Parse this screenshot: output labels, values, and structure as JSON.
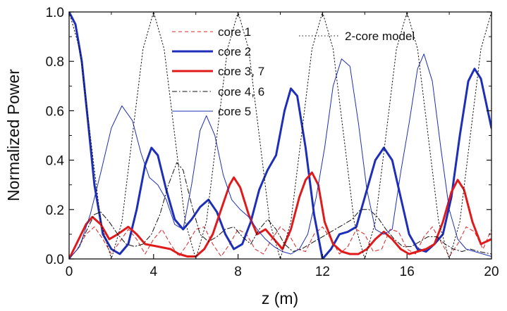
{
  "chart_data": {
    "type": "line",
    "title": "",
    "xlabel": "z (m)",
    "ylabel": "Normalized Power",
    "xlim": [
      0,
      20
    ],
    "ylim": [
      0,
      1.0
    ],
    "xticks": [
      0,
      4,
      8,
      12,
      16,
      20
    ],
    "xtick_labels": [
      "0",
      "4",
      "8",
      "12",
      "16",
      "20"
    ],
    "yticks": [
      0,
      0.2,
      0.4,
      0.6,
      0.8,
      1.0
    ],
    "ytick_labels": [
      "0.0",
      "0.2",
      "0.4",
      "0.6",
      "0.8",
      "1.0"
    ],
    "grid": false,
    "legend_position": "top-center",
    "series": [
      {
        "name": "core 1",
        "color": "#e02020",
        "style": "dashed",
        "width": 1,
        "points": [
          [
            0,
            0
          ],
          [
            0.4,
            0.04
          ],
          [
            0.8,
            0.1
          ],
          [
            1.2,
            0.13
          ],
          [
            1.6,
            0.08
          ],
          [
            2.0,
            0.02
          ],
          [
            2.4,
            0.07
          ],
          [
            2.8,
            0.12
          ],
          [
            3.2,
            0.08
          ],
          [
            3.6,
            0.02
          ],
          [
            4.0,
            0.08
          ],
          [
            4.4,
            0.12
          ],
          [
            4.8,
            0.06
          ],
          [
            5.2,
            0.01
          ],
          [
            5.6,
            0.06
          ],
          [
            6.0,
            0.12
          ],
          [
            6.4,
            0.13
          ],
          [
            6.8,
            0.06
          ],
          [
            7.2,
            0.01
          ],
          [
            7.6,
            0.06
          ],
          [
            8.0,
            0.12
          ],
          [
            8.4,
            0.1
          ],
          [
            8.8,
            0.04
          ],
          [
            9.2,
            0.02
          ],
          [
            9.6,
            0.08
          ],
          [
            10.0,
            0.13
          ],
          [
            10.4,
            0.1
          ],
          [
            10.8,
            0.04
          ],
          [
            11.2,
            0.03
          ],
          [
            11.6,
            0.1
          ],
          [
            12.0,
            0.13
          ],
          [
            12.4,
            0.08
          ],
          [
            12.8,
            0.02
          ],
          [
            13.2,
            0.05
          ],
          [
            13.6,
            0.12
          ],
          [
            14.0,
            0.1
          ],
          [
            14.4,
            0.03
          ],
          [
            14.8,
            0.04
          ],
          [
            15.2,
            0.12
          ],
          [
            15.6,
            0.11
          ],
          [
            16.0,
            0.04
          ],
          [
            16.4,
            0.02
          ],
          [
            16.8,
            0.09
          ],
          [
            17.2,
            0.13
          ],
          [
            17.6,
            0.07
          ],
          [
            18.0,
            0.01
          ],
          [
            18.4,
            0.06
          ],
          [
            18.8,
            0.13
          ],
          [
            19.2,
            0.11
          ],
          [
            19.6,
            0.04
          ],
          [
            20.0,
            0.12
          ]
        ]
      },
      {
        "name": "core 2",
        "color": "#1d2fb8",
        "style": "solid",
        "width": 3,
        "points": [
          [
            0,
            1.0
          ],
          [
            0.3,
            0.95
          ],
          [
            0.6,
            0.8
          ],
          [
            0.9,
            0.55
          ],
          [
            1.2,
            0.3
          ],
          [
            1.6,
            0.1
          ],
          [
            2.0,
            0.04
          ],
          [
            2.4,
            0.02
          ],
          [
            2.8,
            0.06
          ],
          [
            3.2,
            0.2
          ],
          [
            3.6,
            0.38
          ],
          [
            3.9,
            0.45
          ],
          [
            4.2,
            0.42
          ],
          [
            4.6,
            0.28
          ],
          [
            5.0,
            0.16
          ],
          [
            5.4,
            0.12
          ],
          [
            5.8,
            0.16
          ],
          [
            6.2,
            0.21
          ],
          [
            6.6,
            0.24
          ],
          [
            7.0,
            0.19
          ],
          [
            7.4,
            0.1
          ],
          [
            7.8,
            0.04
          ],
          [
            8.2,
            0.06
          ],
          [
            8.6,
            0.15
          ],
          [
            9.0,
            0.28
          ],
          [
            9.4,
            0.36
          ],
          [
            9.8,
            0.42
          ],
          [
            10.2,
            0.6
          ],
          [
            10.5,
            0.69
          ],
          [
            10.8,
            0.66
          ],
          [
            11.2,
            0.45
          ],
          [
            11.6,
            0.18
          ],
          [
            12.0,
            0.0
          ],
          [
            12.4,
            0.04
          ],
          [
            12.8,
            0.1
          ],
          [
            13.2,
            0.11
          ],
          [
            13.6,
            0.13
          ],
          [
            14.0,
            0.25
          ],
          [
            14.5,
            0.4
          ],
          [
            14.9,
            0.45
          ],
          [
            15.3,
            0.4
          ],
          [
            15.7,
            0.25
          ],
          [
            16.1,
            0.1
          ],
          [
            16.5,
            0.04
          ],
          [
            16.9,
            0.03
          ],
          [
            17.3,
            0.06
          ],
          [
            17.7,
            0.1
          ],
          [
            18.1,
            0.25
          ],
          [
            18.5,
            0.5
          ],
          [
            18.9,
            0.72
          ],
          [
            19.2,
            0.77
          ],
          [
            19.5,
            0.73
          ],
          [
            20.0,
            0.53
          ]
        ]
      },
      {
        "name": "core 3, 7",
        "color": "#e01a1a",
        "style": "solid",
        "width": 3,
        "points": [
          [
            0,
            0
          ],
          [
            0.4,
            0.07
          ],
          [
            0.8,
            0.14
          ],
          [
            1.1,
            0.17
          ],
          [
            1.5,
            0.14
          ],
          [
            1.9,
            0.08
          ],
          [
            2.3,
            0.1
          ],
          [
            2.8,
            0.13
          ],
          [
            3.2,
            0.1
          ],
          [
            3.6,
            0.06
          ],
          [
            4.2,
            0.05
          ],
          [
            4.8,
            0.04
          ],
          [
            5.2,
            0.02
          ],
          [
            5.6,
            0.01
          ],
          [
            6.0,
            0.01
          ],
          [
            6.4,
            0.04
          ],
          [
            6.8,
            0.1
          ],
          [
            7.2,
            0.2
          ],
          [
            7.6,
            0.3
          ],
          [
            7.8,
            0.33
          ],
          [
            8.1,
            0.29
          ],
          [
            8.5,
            0.18
          ],
          [
            8.9,
            0.1
          ],
          [
            9.3,
            0.12
          ],
          [
            9.7,
            0.08
          ],
          [
            10.1,
            0.04
          ],
          [
            10.5,
            0.12
          ],
          [
            10.9,
            0.25
          ],
          [
            11.2,
            0.32
          ],
          [
            11.5,
            0.35
          ],
          [
            11.8,
            0.3
          ],
          [
            12.1,
            0.15
          ],
          [
            12.5,
            0.06
          ],
          [
            12.9,
            0.03
          ],
          [
            13.3,
            0.02
          ],
          [
            13.7,
            0.02
          ],
          [
            14.1,
            0.04
          ],
          [
            14.5,
            0.08
          ],
          [
            14.9,
            0.11
          ],
          [
            15.3,
            0.08
          ],
          [
            15.7,
            0.04
          ],
          [
            16.1,
            0.02
          ],
          [
            16.5,
            0.03
          ],
          [
            16.9,
            0.04
          ],
          [
            17.3,
            0.06
          ],
          [
            17.7,
            0.15
          ],
          [
            18.1,
            0.27
          ],
          [
            18.4,
            0.32
          ],
          [
            18.7,
            0.28
          ],
          [
            19.1,
            0.15
          ],
          [
            19.5,
            0.06
          ],
          [
            20.0,
            0.08
          ]
        ]
      },
      {
        "name": "core 4, 6",
        "color": "#111111",
        "style": "dashdot",
        "width": 1,
        "points": [
          [
            0,
            0
          ],
          [
            0.4,
            0.04
          ],
          [
            0.8,
            0.11
          ],
          [
            1.2,
            0.18
          ],
          [
            1.5,
            0.19
          ],
          [
            1.9,
            0.15
          ],
          [
            2.3,
            0.1
          ],
          [
            2.7,
            0.06
          ],
          [
            3.1,
            0.05
          ],
          [
            3.5,
            0.06
          ],
          [
            3.9,
            0.1
          ],
          [
            4.3,
            0.18
          ],
          [
            4.7,
            0.3
          ],
          [
            5.1,
            0.39
          ],
          [
            5.4,
            0.36
          ],
          [
            5.8,
            0.22
          ],
          [
            6.2,
            0.1
          ],
          [
            6.6,
            0.07
          ],
          [
            7.0,
            0.09
          ],
          [
            7.4,
            0.12
          ],
          [
            7.8,
            0.13
          ],
          [
            8.2,
            0.09
          ],
          [
            8.6,
            0.06
          ],
          [
            9.0,
            0.12
          ],
          [
            9.4,
            0.16
          ],
          [
            9.8,
            0.12
          ],
          [
            10.2,
            0.06
          ],
          [
            10.6,
            0.03
          ],
          [
            11.0,
            0.04
          ],
          [
            11.4,
            0.06
          ],
          [
            11.8,
            0.08
          ],
          [
            12.2,
            0.1
          ],
          [
            12.6,
            0.12
          ],
          [
            13.0,
            0.14
          ],
          [
            13.4,
            0.16
          ],
          [
            13.8,
            0.2
          ],
          [
            14.2,
            0.2
          ],
          [
            14.6,
            0.17
          ],
          [
            15.0,
            0.12
          ],
          [
            15.4,
            0.08
          ],
          [
            15.8,
            0.05
          ],
          [
            16.2,
            0.05
          ],
          [
            16.6,
            0.07
          ],
          [
            17.0,
            0.09
          ],
          [
            17.4,
            0.09
          ],
          [
            17.8,
            0.06
          ],
          [
            18.2,
            0.04
          ],
          [
            18.6,
            0.03
          ],
          [
            19.0,
            0.04
          ],
          [
            19.4,
            0.03
          ],
          [
            20.0,
            0.02
          ]
        ]
      },
      {
        "name": "core 5",
        "color": "#1d2fb8",
        "style": "solid",
        "width": 1,
        "points": [
          [
            0,
            0
          ],
          [
            0.5,
            0.05
          ],
          [
            1.0,
            0.18
          ],
          [
            1.5,
            0.35
          ],
          [
            2.0,
            0.53
          ],
          [
            2.5,
            0.62
          ],
          [
            3.0,
            0.56
          ],
          [
            3.4,
            0.43
          ],
          [
            3.8,
            0.33
          ],
          [
            4.2,
            0.3
          ],
          [
            4.6,
            0.24
          ],
          [
            5.0,
            0.14
          ],
          [
            5.4,
            0.12
          ],
          [
            5.8,
            0.3
          ],
          [
            6.2,
            0.52
          ],
          [
            6.5,
            0.58
          ],
          [
            6.9,
            0.5
          ],
          [
            7.3,
            0.34
          ],
          [
            7.7,
            0.24
          ],
          [
            8.1,
            0.2
          ],
          [
            8.5,
            0.17
          ],
          [
            8.9,
            0.12
          ],
          [
            9.3,
            0.08
          ],
          [
            9.7,
            0.05
          ],
          [
            10.1,
            0.03
          ],
          [
            10.5,
            0.02
          ],
          [
            10.9,
            0.04
          ],
          [
            11.3,
            0.1
          ],
          [
            11.7,
            0.25
          ],
          [
            12.1,
            0.45
          ],
          [
            12.5,
            0.7
          ],
          [
            12.9,
            0.81
          ],
          [
            13.3,
            0.78
          ],
          [
            13.7,
            0.55
          ],
          [
            14.1,
            0.28
          ],
          [
            14.5,
            0.12
          ],
          [
            14.9,
            0.1
          ],
          [
            15.3,
            0.12
          ],
          [
            15.7,
            0.35
          ],
          [
            16.1,
            0.55
          ],
          [
            16.5,
            0.77
          ],
          [
            16.8,
            0.83
          ],
          [
            17.2,
            0.72
          ],
          [
            17.6,
            0.45
          ],
          [
            18.0,
            0.2
          ],
          [
            18.4,
            0.08
          ],
          [
            18.8,
            0.04
          ],
          [
            19.2,
            0.03
          ],
          [
            19.6,
            0.02
          ],
          [
            20.0,
            0.01
          ]
        ]
      },
      {
        "name": "2-core model",
        "color": "#111111",
        "style": "dotted",
        "width": 1,
        "points": [
          [
            0,
            1.0
          ],
          [
            0.5,
            0.85
          ],
          [
            1.0,
            0.5
          ],
          [
            1.5,
            0.15
          ],
          [
            2.0,
            0.0
          ],
          [
            2.5,
            0.15
          ],
          [
            3.0,
            0.5
          ],
          [
            3.5,
            0.85
          ],
          [
            4.0,
            1.0
          ],
          [
            4.5,
            0.85
          ],
          [
            5.0,
            0.5
          ],
          [
            5.5,
            0.15
          ],
          [
            6.0,
            0.0
          ],
          [
            6.5,
            0.15
          ],
          [
            7.0,
            0.5
          ],
          [
            7.5,
            0.85
          ],
          [
            8.0,
            1.0
          ],
          [
            8.5,
            0.85
          ],
          [
            9.0,
            0.5
          ],
          [
            9.5,
            0.15
          ],
          [
            10.0,
            0.0
          ],
          [
            10.5,
            0.15
          ],
          [
            11.0,
            0.5
          ],
          [
            11.5,
            0.85
          ],
          [
            12.0,
            1.0
          ],
          [
            12.5,
            0.85
          ],
          [
            13.0,
            0.5
          ],
          [
            13.5,
            0.15
          ],
          [
            14.0,
            0.0
          ],
          [
            14.5,
            0.15
          ],
          [
            15.0,
            0.5
          ],
          [
            15.5,
            0.85
          ],
          [
            16.0,
            1.0
          ],
          [
            16.5,
            0.85
          ],
          [
            17.0,
            0.5
          ],
          [
            17.5,
            0.15
          ],
          [
            18.0,
            0.0
          ],
          [
            18.5,
            0.15
          ],
          [
            19.0,
            0.5
          ],
          [
            19.5,
            0.85
          ],
          [
            20.0,
            1.0
          ]
        ]
      }
    ]
  }
}
